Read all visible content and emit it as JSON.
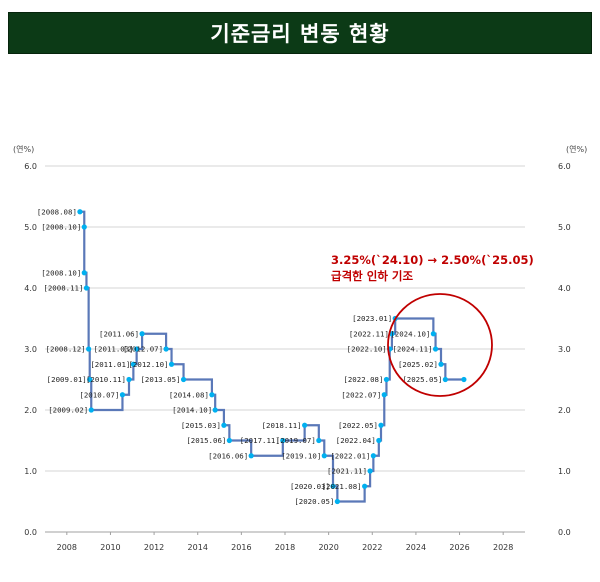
{
  "header": {
    "title": "기준금리 변동 현황"
  },
  "chart_data": {
    "type": "line",
    "title": "기준금리 변동 현황",
    "y_unit_left": "(연%)",
    "y_unit_right": "(연%)",
    "ylim": [
      0,
      6
    ],
    "yticks": [
      "0.0",
      "1.0",
      "2.0",
      "3.0",
      "4.0",
      "5.0",
      "6.0"
    ],
    "xlim": [
      2007,
      2029
    ],
    "xticks": [
      "2008",
      "2010",
      "2012",
      "2014",
      "2016",
      "2018",
      "2020",
      "2022",
      "2024",
      "2026",
      "2028"
    ],
    "grid": true,
    "line_color": "#5a78b8",
    "point_color": "#00b0f0",
    "series": [
      {
        "points": [
          {
            "x": 2008.6,
            "y": 5.25,
            "label": "[2008.08]"
          },
          {
            "x": 2008.8,
            "y": 5.0,
            "label": "[2008.10]"
          },
          {
            "x": 2008.8,
            "y": 4.25,
            "label": "[2008.10]"
          },
          {
            "x": 2008.9,
            "y": 4.0,
            "label": "[2008.11]"
          },
          {
            "x": 2009.0,
            "y": 3.0,
            "label": "[2008.12]"
          },
          {
            "x": 2009.05,
            "y": 2.5,
            "label": "[2009.01]"
          },
          {
            "x": 2009.12,
            "y": 2.0,
            "label": "[2009.02]"
          },
          {
            "x": 2010.55,
            "y": 2.25,
            "label": "[2010.07]"
          },
          {
            "x": 2010.85,
            "y": 2.5,
            "label": "[2010.11]"
          },
          {
            "x": 2011.05,
            "y": 2.75,
            "label": "[2011.01]"
          },
          {
            "x": 2011.2,
            "y": 3.0,
            "label": "[2011.03]"
          },
          {
            "x": 2011.45,
            "y": 3.25,
            "label": "[2011.06]"
          },
          {
            "x": 2012.55,
            "y": 3.0,
            "label": "[2012.07]"
          },
          {
            "x": 2012.8,
            "y": 2.75,
            "label": "[2012.10]"
          },
          {
            "x": 2013.35,
            "y": 2.5,
            "label": "[2013.05]"
          },
          {
            "x": 2014.65,
            "y": 2.25,
            "label": "[2014.08]"
          },
          {
            "x": 2014.8,
            "y": 2.0,
            "label": "[2014.10]"
          },
          {
            "x": 2015.2,
            "y": 1.75,
            "label": "[2015.03]"
          },
          {
            "x": 2015.45,
            "y": 1.5,
            "label": "[2015.06]"
          },
          {
            "x": 2016.45,
            "y": 1.25,
            "label": "[2016.06]"
          },
          {
            "x": 2017.9,
            "y": 1.5,
            "label": "[2017.11]"
          },
          {
            "x": 2018.9,
            "y": 1.75,
            "label": "[2018.11]"
          },
          {
            "x": 2019.55,
            "y": 1.5,
            "label": "[2019.07]"
          },
          {
            "x": 2019.8,
            "y": 1.25,
            "label": "[2019.10]"
          },
          {
            "x": 2020.2,
            "y": 0.75,
            "label": "[2020.03]"
          },
          {
            "x": 2020.4,
            "y": 0.5,
            "label": "[2020.05]"
          },
          {
            "x": 2021.65,
            "y": 0.75,
            "label": "[2021.08]"
          },
          {
            "x": 2021.9,
            "y": 1.0,
            "label": "[2021.11]"
          },
          {
            "x": 2022.05,
            "y": 1.25,
            "label": "[2022.01]"
          },
          {
            "x": 2022.3,
            "y": 1.5,
            "label": "[2022.04]"
          },
          {
            "x": 2022.4,
            "y": 1.75,
            "label": "[2022.05]"
          },
          {
            "x": 2022.55,
            "y": 2.25,
            "label": "[2022.07]"
          },
          {
            "x": 2022.65,
            "y": 2.5,
            "label": "[2022.08]"
          },
          {
            "x": 2022.8,
            "y": 3.0,
            "label": "[2022.10]"
          },
          {
            "x": 2022.9,
            "y": 3.25,
            "label": "[2022.11]"
          },
          {
            "x": 2023.05,
            "y": 3.5,
            "label": "[2023.01]"
          },
          {
            "x": 2024.8,
            "y": 3.25,
            "label": "[2024.10]"
          },
          {
            "x": 2024.9,
            "y": 3.0,
            "label": "[2024.11]"
          },
          {
            "x": 2025.15,
            "y": 2.75,
            "label": "[2025.02]"
          },
          {
            "x": 2025.35,
            "y": 2.5,
            "label": "[2025.05]"
          },
          {
            "x": 2026.2,
            "y": 2.5,
            "label": ""
          }
        ]
      }
    ],
    "annotation": {
      "line1": "3.25%(`24.10) → 2.50%(`25.05)",
      "line2": "급격한 인하 기조",
      "color": "#c00000"
    }
  }
}
